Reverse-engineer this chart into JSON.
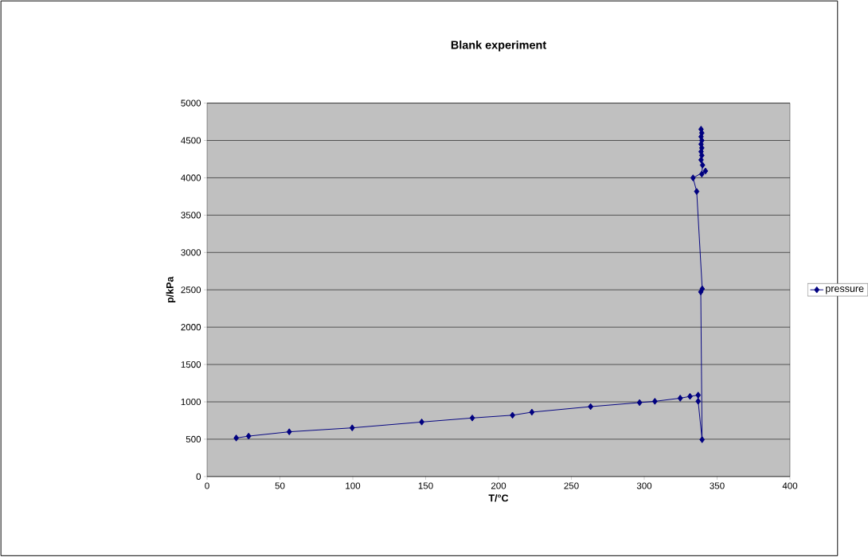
{
  "chart_data": {
    "type": "line",
    "title": "Blank experiment",
    "xlabel": "T/°C",
    "ylabel": "p/kPa",
    "x": [
      20,
      28.5,
      56.4,
      99.6,
      147.3,
      182,
      209.6,
      222.9,
      263.2,
      296.8,
      307.3,
      324.7,
      331.4,
      337,
      337,
      339.7,
      338.8,
      339.8,
      336,
      333.5,
      342,
      339.5,
      340,
      339,
      339.5,
      339,
      339.5,
      339,
      339.5,
      339,
      339.5,
      339
    ],
    "series": [
      {
        "name": "pressure",
        "color": "#000080",
        "values": [
          516,
          541,
          599,
          652,
          730,
          784,
          821,
          862,
          936,
          990,
          1007,
          1049,
          1073,
          1090,
          1008,
          494,
          2472,
          2513,
          3817,
          3999,
          4091,
          4050,
          4170,
          4240,
          4300,
          4350,
          4400,
          4450,
          4500,
          4550,
          4600,
          4650
        ]
      }
    ],
    "xlim": [
      0,
      400
    ],
    "xticks": [
      0,
      50,
      100,
      150,
      200,
      250,
      300,
      350,
      400
    ],
    "ylim": [
      0,
      5000
    ],
    "yticks": [
      0,
      500,
      1000,
      1500,
      2000,
      2500,
      3000,
      3500,
      4000,
      4500,
      5000
    ],
    "grid": "y",
    "legend": "right",
    "marker": "diamond",
    "line_style": "solid"
  }
}
